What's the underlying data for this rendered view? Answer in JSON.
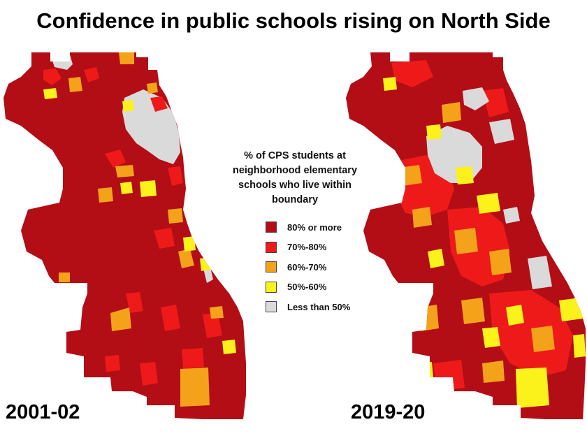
{
  "title": "Confidence in public schools rising on North Side",
  "legend": {
    "title": "% of CPS students at neighborhood elementary schools who live within boundary",
    "items": [
      {
        "label": "80% or more",
        "color": "#b30d16"
      },
      {
        "label": "70%-80%",
        "color": "#ee1a1a"
      },
      {
        "label": "60%-70%",
        "color": "#f4a21a"
      },
      {
        "label": "50%-60%",
        "color": "#fbf21c"
      },
      {
        "label": "Less than 50%",
        "color": "#dadada"
      }
    ]
  },
  "maps": [
    {
      "year_label": "2001-02",
      "region_mix": "mostly 80% or more across the city; Less than 50% concentrated in the north-east lakefront; scattered 50%-60% and 60%-70% areas"
    },
    {
      "year_label": "2019-20",
      "region_mix": "more 70%-80%, 60%-70% and 50%-60% areas throughout; Less than 50% concentrated in the north-central area; 80% or more along the north lakefront and south-west"
    }
  ]
}
